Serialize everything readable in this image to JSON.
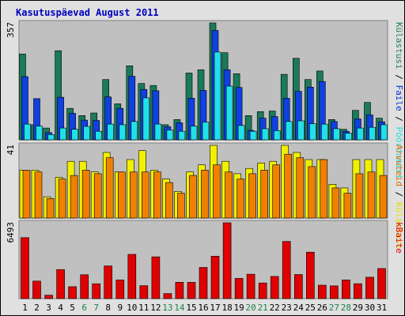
{
  "chart_data": {
    "type": "bar",
    "title": "Kasutuspäevad August 2011",
    "x_labels": [
      "1",
      "2",
      "3",
      "4",
      "5",
      "6",
      "7",
      "8",
      "9",
      "10",
      "11",
      "12",
      "13",
      "14",
      "15",
      "16",
      "17",
      "18",
      "19",
      "20",
      "21",
      "22",
      "23",
      "24",
      "25",
      "26",
      "27",
      "28",
      "29",
      "30",
      "31"
    ],
    "weekend_days": [
      "6",
      "7",
      "13",
      "14",
      "20",
      "21",
      "27",
      "28"
    ],
    "colors": {
      "title": "#0000c0",
      "panel_bg": "#c0c0c0",
      "page_bg": "#e0e0e0",
      "weekday_label": "#000000",
      "weekend_label": "#208050"
    },
    "panels": [
      {
        "id": "top",
        "max_label": "357",
        "ymax": 357,
        "right_labels": [
          {
            "text": "Külastusi",
            "color": "#208050"
          },
          {
            "text": " / ",
            "color": "#000000"
          },
          {
            "text": "Faile",
            "color": "#0030e0"
          },
          {
            "text": " / ",
            "color": "#000000"
          },
          {
            "text": "Pöördumisi",
            "color": "#20e0e0"
          }
        ],
        "series": [
          {
            "name": "Pöördumisi",
            "color": "#1a7a5a",
            "values": [
              262,
              46,
              36,
              272,
              96,
              74,
              82,
              184,
              110,
              226,
              172,
              166,
              46,
              62,
              204,
              214,
              357,
              266,
              202,
              74,
              86,
              88,
              200,
              249,
              184,
              210,
              62,
              32,
              90,
              114,
              66
            ]
          },
          {
            "name": "Faile",
            "color": "#1040e0",
            "values": [
              193,
              126,
              22,
              130,
              81,
              60,
              59,
              131,
              96,
              194,
              154,
              150,
              40,
              52,
              127,
              151,
              334,
              214,
              160,
              29,
              66,
              71,
              127,
              148,
              161,
              178,
              56,
              26,
              64,
              76,
              55
            ]
          },
          {
            "name": "Külastusi",
            "color": "#20e0e8",
            "values": [
              48,
              42,
              16,
              36,
              32,
              41,
              26,
              48,
              46,
              56,
              128,
              48,
              30,
              26,
              42,
              54,
              268,
              164,
              44,
              26,
              34,
              28,
              56,
              58,
              49,
              48,
              34,
              20,
              36,
              38,
              46
            ]
          }
        ]
      },
      {
        "id": "middle",
        "max_label": "41",
        "ymax": 41,
        "right_labels": [
          {
            "text": "Arvuteid",
            "color": "#e07000"
          },
          {
            "text": " / ",
            "color": "#000000"
          },
          {
            "text": "Külastusi",
            "color": "#e0e000"
          }
        ],
        "series": [
          {
            "name": "Külastusi",
            "color": "#f0f000",
            "values": [
              27,
              27,
              12,
              23,
              32,
              32,
              26,
              37,
              26,
              33,
              38,
              27,
              22,
              15,
              26,
              30,
              41,
              32,
              25,
              28,
              31,
              32,
              41,
              37,
              33,
              33,
              19,
              17,
              33,
              33,
              33
            ]
          },
          {
            "name": "Arvuteid",
            "color": "#f08000",
            "values": [
              27,
              26,
              11,
              22,
              24,
              27,
              25,
              34,
              26,
              26,
              26,
              26,
              20,
              14,
              24,
              27,
              30,
              26,
              22,
              25,
              27,
              30,
              36,
              34,
              29,
              33,
              17,
              14,
              25,
              26,
              24
            ]
          }
        ]
      },
      {
        "id": "bottom",
        "max_label": "6493",
        "ymax": 6493,
        "right_labels": [
          {
            "text": "kBaite",
            "color": "#e00000"
          }
        ],
        "series": [
          {
            "name": "kBaite",
            "color": "#e00000",
            "values": [
              5220,
              1500,
              290,
              2490,
              1020,
              2040,
              1270,
              2800,
              1600,
              3790,
              1110,
              3580,
              430,
              1400,
              1390,
              2670,
              3630,
              6493,
              1730,
              2090,
              1340,
              1900,
              4900,
              2060,
              3980,
              1150,
              1090,
              1600,
              1280,
              1830,
              2580
            ]
          }
        ]
      }
    ]
  }
}
